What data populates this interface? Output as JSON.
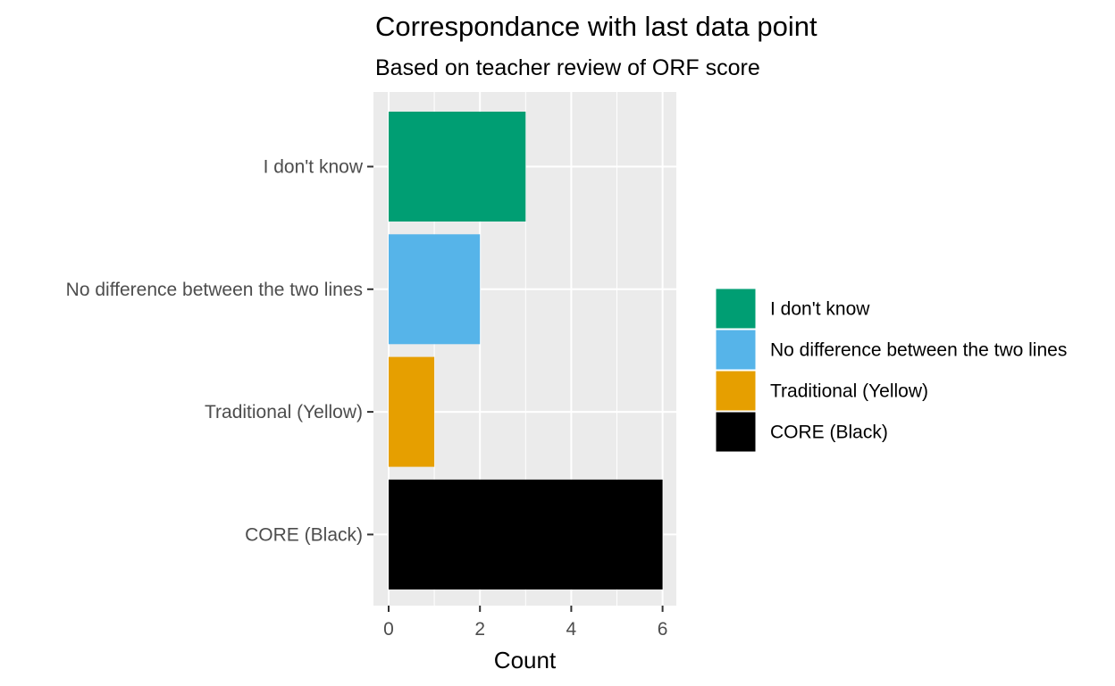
{
  "chart_data": {
    "type": "bar",
    "orientation": "horizontal",
    "title": "Correspondance with last data point",
    "subtitle": "Based on teacher review of ORF score",
    "xlabel": "Count",
    "ylabel": "",
    "categories": [
      "I don't know",
      "No difference between the two lines",
      "Traditional (Yellow)",
      "CORE (Black)"
    ],
    "values": [
      3,
      2,
      1,
      6
    ],
    "colors": [
      "#009E73",
      "#56B4E9",
      "#E69F00",
      "#000000"
    ],
    "xlim": [
      0,
      6.3
    ],
    "x_ticks": [
      "0",
      "2",
      "4",
      "6"
    ],
    "grid": true,
    "legend": {
      "position": "right",
      "entries": [
        "I don't know",
        "No difference between the two lines",
        "Traditional (Yellow)",
        "CORE (Black)"
      ]
    }
  }
}
